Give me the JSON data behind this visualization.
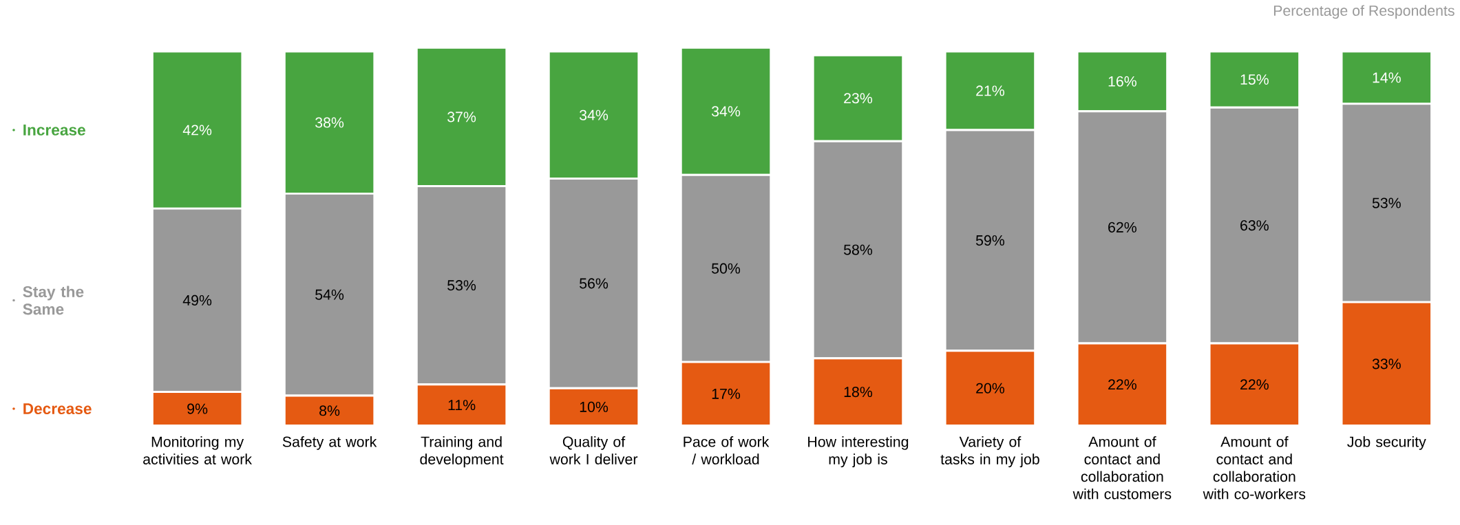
{
  "chart_data": {
    "type": "bar",
    "stacked": true,
    "legend": "left",
    "annotations": [
      "Percentage of Respondents"
    ],
    "categories": [
      "Monitoring my activities at work",
      "Safety at work",
      "Training and development",
      "Quality of work I deliver",
      "Pace of work / workload",
      "How interesting my job is",
      "Variety of tasks in my job",
      "Amount of contact and collaboration with customers",
      "Amount of contact and collaboration with co-workers",
      "Job security"
    ],
    "series": [
      {
        "name": "Decrease",
        "color": "#e55a12",
        "values": [
          9,
          8,
          11,
          10,
          17,
          18,
          20,
          22,
          22,
          33
        ],
        "value_labels": [
          "9%",
          "8%",
          "11%",
          "10%",
          "17%",
          "18%",
          "20%",
          "22%",
          "22%",
          "33%"
        ]
      },
      {
        "name": "Stay the Same",
        "color": "#999999",
        "values": [
          49,
          54,
          53,
          56,
          50,
          58,
          59,
          62,
          63,
          53
        ],
        "value_labels": [
          "49%",
          "54%",
          "53%",
          "56%",
          "50%",
          "58%",
          "59%",
          "62%",
          "63%",
          "53%"
        ]
      },
      {
        "name": "Increase",
        "color": "#48a540",
        "values": [
          42,
          38,
          37,
          34,
          34,
          23,
          21,
          16,
          15,
          14
        ],
        "value_labels": [
          "42%",
          "38%",
          "37%",
          "34%",
          "34%",
          "23%",
          "21%",
          "16%",
          "15%",
          "14%"
        ]
      }
    ]
  }
}
